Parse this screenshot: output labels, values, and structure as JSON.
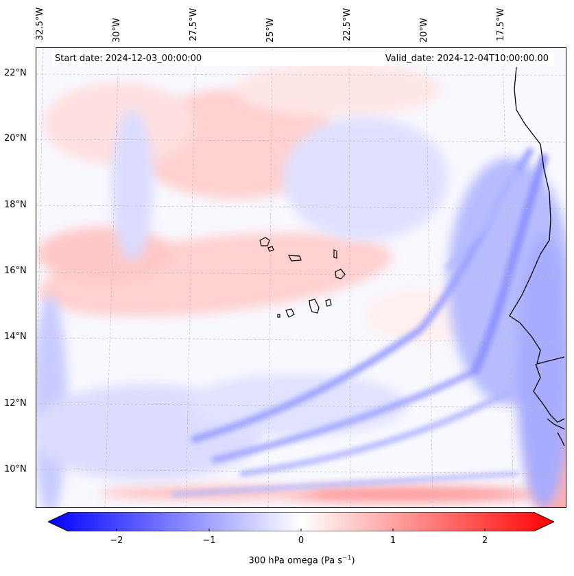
{
  "map": {
    "lon_ticks": [
      "32.5°W",
      "30°W",
      "27.5°W",
      "25°W",
      "22.5°W",
      "20°W",
      "17.5°W"
    ],
    "lat_ticks": [
      "22°N",
      "20°N",
      "18°N",
      "16°N",
      "14°N",
      "12°N",
      "10°N"
    ],
    "start_date": "Start date: 2024-12-03_00:00:00",
    "valid_date": "Valid_date: 2024-12-04T10:00:00.00",
    "colors": {
      "negative": "#0000ff",
      "zero": "#ffffff",
      "positive": "#ff0000",
      "coast": "#000000"
    }
  },
  "colorbar": {
    "ticks": [
      "−2",
      "−1",
      "0",
      "1",
      "2"
    ],
    "title": "300 hPa omega (Pa s",
    "title_sup": "−1",
    "title_end": ")",
    "range": [
      -2.7,
      2.7
    ]
  }
}
